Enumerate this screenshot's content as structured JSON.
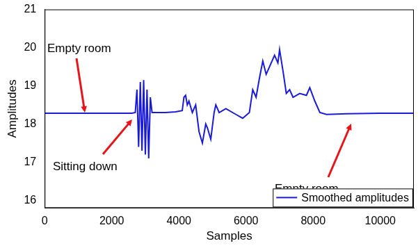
{
  "chart_data": {
    "type": "line",
    "x_label": "Samples",
    "y_label": "Amplitudes",
    "annotations": [
      "Empty room",
      "Sitting down",
      "Empty room"
    ],
    "x": [
      0,
      1000,
      2000,
      2600,
      2700,
      2750,
      2800,
      2850,
      2900,
      2950,
      3000,
      3050,
      3100,
      3150,
      3200,
      3300,
      3600,
      3900,
      4100,
      4150,
      4200,
      4250,
      4300,
      4400,
      4500,
      4600,
      4700,
      4800,
      4850,
      4950,
      5050,
      5100,
      5200,
      5400,
      5700,
      5900,
      6100,
      6200,
      6300,
      6400,
      6500,
      6600,
      6700,
      6850,
      6950,
      7000,
      7100,
      7200,
      7300,
      7400,
      7600,
      7800,
      7900,
      8050,
      8200,
      8400,
      9000,
      10000,
      11000
    ],
    "series": [
      {
        "name": "Smoothed amplitudes",
        "color": "#1a1adb",
        "values": [
          18.28,
          18.28,
          18.28,
          18.28,
          18.3,
          18.9,
          17.4,
          19.1,
          17.3,
          19.15,
          17.2,
          18.9,
          17.1,
          18.7,
          18.3,
          18.3,
          18.3,
          18.32,
          18.35,
          18.7,
          18.75,
          18.5,
          18.6,
          18.3,
          18.5,
          17.8,
          17.5,
          18.0,
          17.9,
          17.6,
          18.3,
          18.5,
          18.3,
          18.4,
          18.25,
          18.15,
          18.3,
          18.9,
          18.7,
          19.2,
          19.65,
          19.3,
          19.5,
          19.8,
          19.6,
          19.95,
          19.4,
          18.8,
          18.9,
          18.7,
          18.8,
          18.75,
          18.95,
          18.6,
          18.3,
          18.25,
          18.27,
          18.28,
          18.28
        ]
      }
    ],
    "xlim": [
      0,
      11000
    ],
    "xticks": [
      0,
      2000,
      4000,
      6000,
      8000,
      10000
    ],
    "ylim": [
      15.8,
      21
    ],
    "yticks": [
      16,
      17,
      18,
      19,
      20,
      21
    ],
    "grid": false,
    "legend": "lower right"
  }
}
